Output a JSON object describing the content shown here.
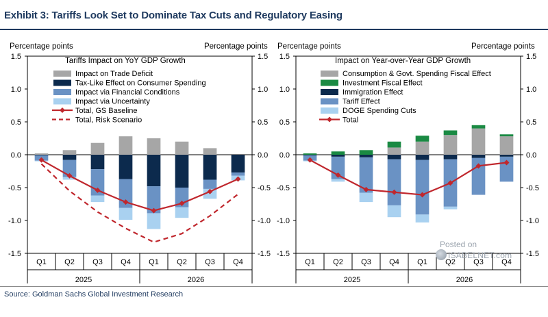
{
  "title": "Exhibit 3: Tariffs Look Set to Dominate Tax Cuts and Regulatory Easing",
  "source": "Source: Goldman Sachs Global Investment Research",
  "watermark": {
    "line1": "Posted on",
    "line2": "ISABELNET.com"
  },
  "colors": {
    "trade_deficit": "#a6a6a6",
    "consumer_spending": "#0c2a4d",
    "financial_conditions": "#6a92c4",
    "uncertainty": "#a9d1f0",
    "gs_baseline": "#c0272d",
    "investment_fiscal": "#1a8a43",
    "immigration": "#0c2a4d",
    "tariff": "#6a92c4",
    "doge": "#a9d1f0",
    "consumption_fiscal": "#a6a6a6"
  },
  "chart_data": [
    {
      "type": "bar",
      "stacked": true,
      "title": "Tariffs Impact on YoY GDP Growth",
      "ylabel_left": "Percentage points",
      "ylabel_right": "Percentage points",
      "ylim": [
        -1.5,
        1.5
      ],
      "yticks": [
        "1.5",
        "1.0",
        "0.5",
        "0.0",
        "-0.5",
        "-1.0",
        "-1.5"
      ],
      "categories": [
        "Q1",
        "Q2",
        "Q3",
        "Q4",
        "Q1",
        "Q2",
        "Q3",
        "Q4"
      ],
      "years": [
        "2025",
        "2026"
      ],
      "series": [
        {
          "name": "Impact on Trade Deficit",
          "kind": "bar",
          "values": [
            0.02,
            0.07,
            0.18,
            0.28,
            0.25,
            0.2,
            0.1,
            0.0
          ]
        },
        {
          "name": "Tax-Like Effect on Consumer Spending",
          "kind": "bar",
          "values": [
            -0.01,
            -0.08,
            -0.22,
            -0.37,
            -0.48,
            -0.5,
            -0.38,
            -0.27
          ]
        },
        {
          "name": "Impact via Financial Conditions",
          "kind": "bar",
          "values": [
            -0.08,
            -0.26,
            -0.4,
            -0.44,
            -0.41,
            -0.3,
            -0.14,
            -0.05
          ]
        },
        {
          "name": "Impact via Uncertainty",
          "kind": "bar",
          "values": [
            -0.01,
            -0.04,
            -0.1,
            -0.18,
            -0.24,
            -0.16,
            -0.15,
            -0.07
          ]
        },
        {
          "name": "Total, GS Baseline",
          "kind": "line",
          "values": [
            -0.08,
            -0.32,
            -0.54,
            -0.72,
            -0.85,
            -0.74,
            -0.56,
            -0.37
          ]
        },
        {
          "name": "Total, Risk Scenario",
          "kind": "dashed",
          "values": [
            -0.14,
            -0.55,
            -0.87,
            -1.12,
            -1.33,
            -1.2,
            -0.93,
            -0.6
          ]
        }
      ]
    },
    {
      "type": "bar",
      "stacked": true,
      "title": "Impact on Year-over-Year  GDP Growth",
      "ylabel_left": "Percentage points",
      "ylabel_right": "Percentage points",
      "ylim": [
        -1.5,
        1.5
      ],
      "yticks": [
        "1.5",
        "1.0",
        "0.5",
        "0.0",
        "-0.5",
        "-1.0",
        "-1.5"
      ],
      "categories": [
        "Q1",
        "Q2",
        "Q3",
        "Q4",
        "Q1",
        "Q2",
        "Q3",
        "Q4"
      ],
      "years": [
        "2025",
        "2026"
      ],
      "series": [
        {
          "name": "Consumption & Govt. Spending Fiscal Effect",
          "kind": "bar",
          "values": [
            0.0,
            0.0,
            0.0,
            0.11,
            0.2,
            0.3,
            0.4,
            0.28
          ]
        },
        {
          "name": "Investment Fiscal Effect",
          "kind": "bar",
          "values": [
            0.02,
            0.05,
            0.07,
            0.09,
            0.09,
            0.07,
            0.05,
            0.03
          ]
        },
        {
          "name": "Immigration Effect",
          "kind": "bar",
          "values": [
            -0.01,
            -0.03,
            -0.04,
            -0.07,
            -0.08,
            -0.07,
            -0.05,
            -0.03
          ]
        },
        {
          "name": "Tariff Effect",
          "kind": "bar",
          "values": [
            -0.08,
            -0.34,
            -0.54,
            -0.7,
            -0.83,
            -0.72,
            -0.56,
            -0.38
          ]
        },
        {
          "name": "DOGE Spending Cuts",
          "kind": "bar",
          "values": [
            -0.01,
            -0.04,
            -0.14,
            -0.18,
            -0.12,
            -0.04,
            0.0,
            0.0
          ]
        },
        {
          "name": "Total",
          "kind": "line",
          "values": [
            -0.08,
            -0.31,
            -0.53,
            -0.57,
            -0.61,
            -0.43,
            -0.17,
            -0.12
          ]
        }
      ]
    }
  ]
}
